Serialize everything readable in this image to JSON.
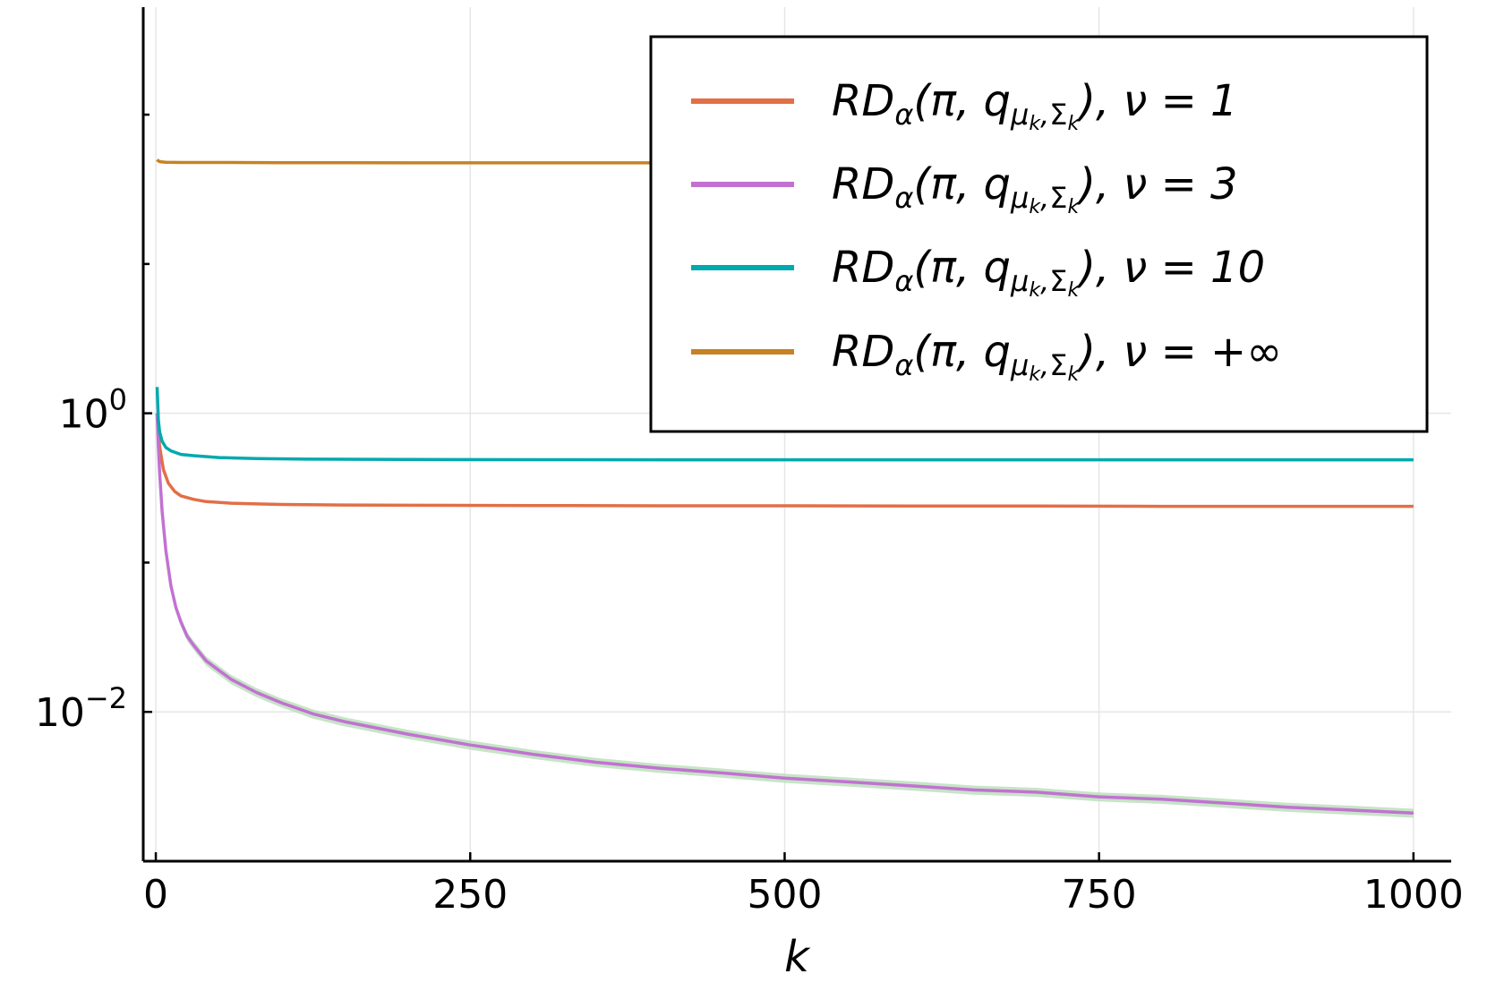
{
  "chart_data": {
    "type": "line",
    "xlabel": "k",
    "ylabel": "",
    "title": "",
    "xlim": [
      -10,
      1030
    ],
    "y_scale": "log10",
    "ylim_log10": [
      -3.0,
      2.72
    ],
    "grid": true,
    "legend_position": "top-right",
    "x_ticks": [
      {
        "value": 0,
        "label": "0"
      },
      {
        "value": 250,
        "label": "250"
      },
      {
        "value": 500,
        "label": "500"
      },
      {
        "value": 750,
        "label": "750"
      },
      {
        "value": 1000,
        "label": "1000"
      }
    ],
    "y_major_ticks": [
      {
        "log10": 0,
        "base": "10",
        "exp": "0"
      },
      {
        "log10": -2,
        "base": "10",
        "exp": "−2"
      }
    ],
    "y_minor_ticks_log10": [
      -3,
      -1,
      1,
      2
    ],
    "series": [
      {
        "name": "RDα(π, qμk,Σk), ν = 1",
        "legend": {
          "pre": "RD",
          "alpha": "α",
          "mid": "(π, q",
          "mu": "μ",
          "k1": "k",
          "sep": ",",
          "sigma": "Σ",
          "k2": "k",
          "post": "), ν = 1"
        },
        "color": "#e26f46",
        "x": [
          1,
          3,
          6,
          10,
          15,
          20,
          30,
          40,
          60,
          80,
          100,
          150,
          200,
          300,
          400,
          500,
          600,
          700,
          800,
          900,
          1000
        ],
        "y": [
          1.0,
          0.6,
          0.42,
          0.34,
          0.3,
          0.28,
          0.265,
          0.256,
          0.25,
          0.247,
          0.245,
          0.243,
          0.242,
          0.241,
          0.24,
          0.24,
          0.239,
          0.239,
          0.238,
          0.238,
          0.238
        ]
      },
      {
        "name": "RDα(π, qμk,Σk), ν = 3",
        "legend": {
          "pre": "RD",
          "alpha": "α",
          "mid": "(π, q",
          "mu": "μ",
          "k1": "k",
          "sep": ",",
          "sigma": "Σ",
          "k2": "k",
          "post": "), ν = 3"
        },
        "color": "#c271d2",
        "x": [
          1,
          2,
          3,
          5,
          8,
          12,
          16,
          20,
          25,
          30,
          40,
          50,
          60,
          80,
          100,
          125,
          150,
          200,
          250,
          300,
          350,
          400,
          450,
          500,
          550,
          600,
          650,
          700,
          750,
          800,
          850,
          900,
          950,
          1000
        ],
        "y": [
          1.0,
          0.6,
          0.4,
          0.22,
          0.12,
          0.07,
          0.05,
          0.04,
          0.032,
          0.028,
          0.022,
          0.019,
          0.0165,
          0.0135,
          0.0115,
          0.0097,
          0.0086,
          0.0071,
          0.006,
          0.0052,
          0.0046,
          0.0042,
          0.0039,
          0.0036,
          0.0034,
          0.0032,
          0.003,
          0.0029,
          0.0027,
          0.0026,
          0.00245,
          0.0023,
          0.0022,
          0.0021
        ]
      },
      {
        "name": "RDα(π, qμk,Σk), ν = 10",
        "legend": {
          "pre": "RD",
          "alpha": "α",
          "mid": "(π, q",
          "mu": "μ",
          "k1": "k",
          "sep": ",",
          "sigma": "Σ",
          "k2": "k",
          "post": "), ν = 10"
        },
        "color": "#00a9ad",
        "x": [
          1,
          2,
          3,
          5,
          8,
          12,
          20,
          30,
          50,
          80,
          120,
          200,
          300,
          400,
          500,
          600,
          700,
          800,
          900,
          1000
        ],
        "y": [
          1.5,
          0.9,
          0.75,
          0.65,
          0.59,
          0.56,
          0.53,
          0.52,
          0.505,
          0.497,
          0.493,
          0.49,
          0.489,
          0.488,
          0.488,
          0.488,
          0.488,
          0.488,
          0.488,
          0.488
        ]
      },
      {
        "name": "RDα(π, qμk,Σk), ν = +∞",
        "legend": {
          "pre": "RD",
          "alpha": "α",
          "mid": "(π, q",
          "mu": "μ",
          "k1": "k",
          "sep": ",",
          "sigma": "Σ",
          "k2": "k",
          "post": "), ν = +∞"
        },
        "color": "#c68225",
        "x": [
          1,
          2,
          4,
          8,
          20,
          50,
          100,
          200,
          300,
          400,
          1000
        ],
        "y": [
          50,
          49,
          48.3,
          48,
          47.8,
          47.8,
          47.7,
          47.6,
          47.6,
          47.6,
          47.6
        ]
      }
    ],
    "band": {
      "series_index": 1,
      "color": "#b8dfb8",
      "relative_halfwidth": 0.07
    }
  }
}
